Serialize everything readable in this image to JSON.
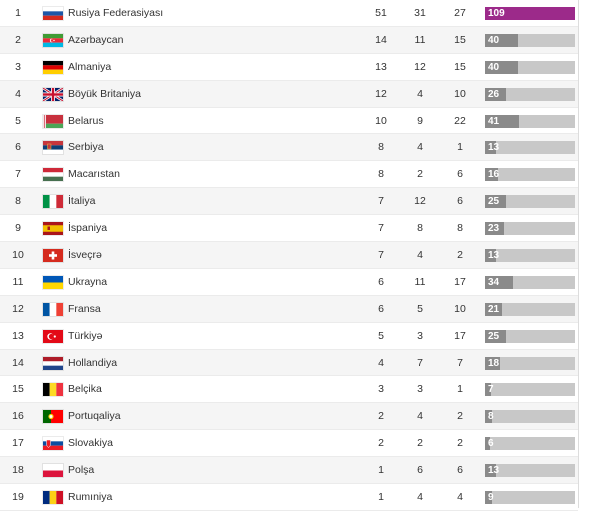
{
  "max_total": 109,
  "colors": {
    "lead_bar": "#9c2a8a",
    "bar": "#8a8a8a",
    "track": "#c8c8c8"
  },
  "rows": [
    {
      "rank": "1",
      "country": "Rusiya Federasiyası",
      "flag": "russia-flag",
      "gold": "51",
      "silver": "31",
      "bronze": "27",
      "total": "109"
    },
    {
      "rank": "2",
      "country": "Azərbaycan",
      "flag": "azerbaijan-flag",
      "gold": "14",
      "silver": "11",
      "bronze": "15",
      "total": "40"
    },
    {
      "rank": "3",
      "country": "Almaniya",
      "flag": "germany-flag",
      "gold": "13",
      "silver": "12",
      "bronze": "15",
      "total": "40"
    },
    {
      "rank": "4",
      "country": "Böyük Britaniya",
      "flag": "uk-flag",
      "gold": "12",
      "silver": "4",
      "bronze": "10",
      "total": "26"
    },
    {
      "rank": "5",
      "country": "Belarus",
      "flag": "belarus-flag",
      "gold": "10",
      "silver": "9",
      "bronze": "22",
      "total": "41"
    },
    {
      "rank": "6",
      "country": "Serbiya",
      "flag": "serbia-flag",
      "gold": "8",
      "silver": "4",
      "bronze": "1",
      "total": "13"
    },
    {
      "rank": "7",
      "country": "Macarıstan",
      "flag": "hungary-flag",
      "gold": "8",
      "silver": "2",
      "bronze": "6",
      "total": "16"
    },
    {
      "rank": "8",
      "country": "İtaliya",
      "flag": "italy-flag",
      "gold": "7",
      "silver": "12",
      "bronze": "6",
      "total": "25"
    },
    {
      "rank": "9",
      "country": "İspaniya",
      "flag": "spain-flag",
      "gold": "7",
      "silver": "8",
      "bronze": "8",
      "total": "23"
    },
    {
      "rank": "10",
      "country": "İsveçrə",
      "flag": "switzerland-flag",
      "gold": "7",
      "silver": "4",
      "bronze": "2",
      "total": "13"
    },
    {
      "rank": "11",
      "country": "Ukrayna",
      "flag": "ukraine-flag",
      "gold": "6",
      "silver": "11",
      "bronze": "17",
      "total": "34"
    },
    {
      "rank": "12",
      "country": "Fransa",
      "flag": "france-flag",
      "gold": "6",
      "silver": "5",
      "bronze": "10",
      "total": "21"
    },
    {
      "rank": "13",
      "country": "Türkiyə",
      "flag": "turkey-flag",
      "gold": "5",
      "silver": "3",
      "bronze": "17",
      "total": "25"
    },
    {
      "rank": "14",
      "country": "Hollandiya",
      "flag": "netherlands-flag",
      "gold": "4",
      "silver": "7",
      "bronze": "7",
      "total": "18"
    },
    {
      "rank": "15",
      "country": "Belçika",
      "flag": "belgium-flag",
      "gold": "3",
      "silver": "3",
      "bronze": "1",
      "total": "7"
    },
    {
      "rank": "16",
      "country": "Portuqaliya",
      "flag": "portugal-flag",
      "gold": "2",
      "silver": "4",
      "bronze": "2",
      "total": "8"
    },
    {
      "rank": "17",
      "country": "Slovakiya",
      "flag": "slovakia-flag",
      "gold": "2",
      "silver": "2",
      "bronze": "2",
      "total": "6"
    },
    {
      "rank": "18",
      "country": "Polşa",
      "flag": "poland-flag",
      "gold": "1",
      "silver": "6",
      "bronze": "6",
      "total": "13"
    },
    {
      "rank": "19",
      "country": "Rumıniya",
      "flag": "romania-flag",
      "gold": "1",
      "silver": "4",
      "bronze": "4",
      "total": "9"
    }
  ]
}
